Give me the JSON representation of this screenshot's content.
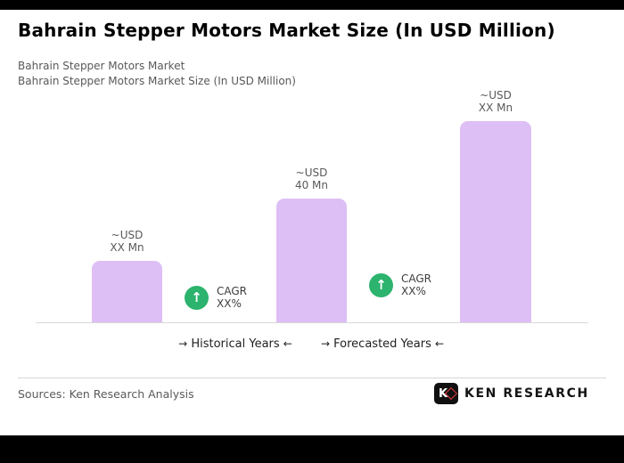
{
  "page": {
    "title": "Bahrain Stepper Motors Market Size (In USD Million)",
    "subtitle_line1": "Bahrain Stepper Motors Market",
    "subtitle_line2": "Bahrain Stepper Motors Market Size (In USD Million)",
    "sources": "Sources: Ken Research Analysis"
  },
  "icons": {
    "arrow_right": "→",
    "arrow_left": "←",
    "trend_up": "↑"
  },
  "logo": {
    "k": "K",
    "text": "KEN RESEARCH"
  },
  "colors": {
    "bar": "#debff5",
    "badge_green": "#2cb36e",
    "logo_red": "#e0393e",
    "frame_black": "#000000",
    "text_gray": "#595959"
  },
  "chart_data": {
    "type": "bar",
    "title": "Bahrain Stepper Motors Market Size (In USD Million)",
    "xlabel": "",
    "units": "USD Mn",
    "grid": false,
    "legend_position": "below-axis",
    "ylim": [
      0,
      65
    ],
    "bars": [
      {
        "label_lines": [
          "~USD",
          "XX Mn"
        ],
        "value_estimate": 20,
        "period": "Historical Years"
      },
      {
        "label_lines": [
          "~USD",
          "40 Mn"
        ],
        "value_estimate": 40,
        "period": "Historical Years"
      },
      {
        "label_lines": [
          "~USD",
          "XX Mn"
        ],
        "value_estimate": 65,
        "period": "Forecasted Years"
      }
    ],
    "annotations": [
      {
        "lines": [
          "CAGR",
          "XX%"
        ],
        "between_bars": [
          0,
          1
        ]
      },
      {
        "lines": [
          "CAGR",
          "XX%"
        ],
        "between_bars": [
          1,
          2
        ]
      }
    ],
    "axis_groups": [
      {
        "label": "Historical Years"
      },
      {
        "label": "Forecasted Years"
      }
    ]
  }
}
